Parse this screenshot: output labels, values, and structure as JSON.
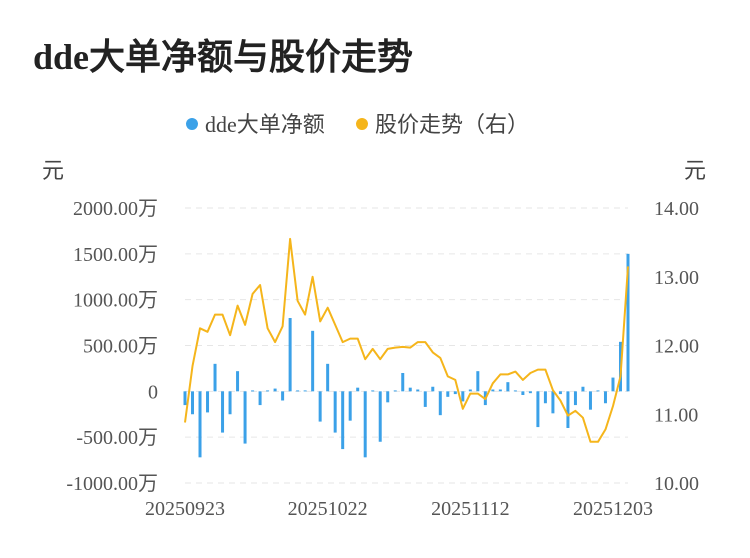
{
  "title": "dde大单净额与股价走势",
  "chart_data": {
    "type": "bar+line",
    "title": "dde大单净额与股价走势",
    "legend": [
      {
        "name": "dde大单净额",
        "color": "#3ba1e8"
      },
      {
        "name": "股价走势（右）",
        "color": "#f5b51b"
      }
    ],
    "legend_position": "top-center",
    "y_left": {
      "unit": "元",
      "ticks": [
        "2000.00万",
        "1500.00万",
        "1000.00万",
        "500.00万",
        "0",
        "-500.00万",
        "-1000.00万"
      ],
      "range": [
        -1000,
        2000
      ],
      "value_unit": "万元"
    },
    "y_right": {
      "unit": "元",
      "ticks": [
        "14.00",
        "13.00",
        "12.00",
        "11.00",
        "10.00"
      ],
      "range": [
        10,
        14
      ]
    },
    "x_ticks": [
      "20250923",
      "20251022",
      "20251112",
      "20251203"
    ],
    "x_tick_indices": [
      0,
      19,
      38,
      57
    ],
    "grid": "horizontal-dashed",
    "series": [
      {
        "name": "dde大单净额",
        "kind": "bar",
        "color": "#3ba1e8",
        "values": [
          -150,
          -250,
          -720,
          -230,
          300,
          -450,
          -250,
          220,
          -570,
          10,
          -150,
          10,
          30,
          -100,
          800,
          10,
          10,
          660,
          -330,
          300,
          -450,
          -630,
          -320,
          40,
          -720,
          10,
          -550,
          -120,
          10,
          200,
          40,
          20,
          -170,
          50,
          -260,
          -60,
          -30,
          -110,
          20,
          220,
          -150,
          20,
          20,
          100,
          10,
          -40,
          -20,
          -390,
          -130,
          -240,
          -30,
          -400,
          -150,
          50,
          -200,
          10,
          -130,
          150,
          540,
          1500
        ]
      },
      {
        "name": "股价走势（右）",
        "kind": "line",
        "axis": "right",
        "color": "#f5b51b",
        "values": [
          10.88,
          11.7,
          12.25,
          12.2,
          12.45,
          12.45,
          12.15,
          12.58,
          12.3,
          12.75,
          12.88,
          12.25,
          12.05,
          12.28,
          13.55,
          12.65,
          12.45,
          13.0,
          12.35,
          12.55,
          12.3,
          12.05,
          12.1,
          12.1,
          11.8,
          11.95,
          11.8,
          11.95,
          11.97,
          11.98,
          11.97,
          12.05,
          12.05,
          11.9,
          11.82,
          11.55,
          11.5,
          11.08,
          11.3,
          11.3,
          11.22,
          11.45,
          11.58,
          11.58,
          11.62,
          11.5,
          11.6,
          11.65,
          11.65,
          11.35,
          11.2,
          10.98,
          11.05,
          10.95,
          10.6,
          10.6,
          10.78,
          11.12,
          11.55,
          13.15
        ]
      }
    ]
  }
}
